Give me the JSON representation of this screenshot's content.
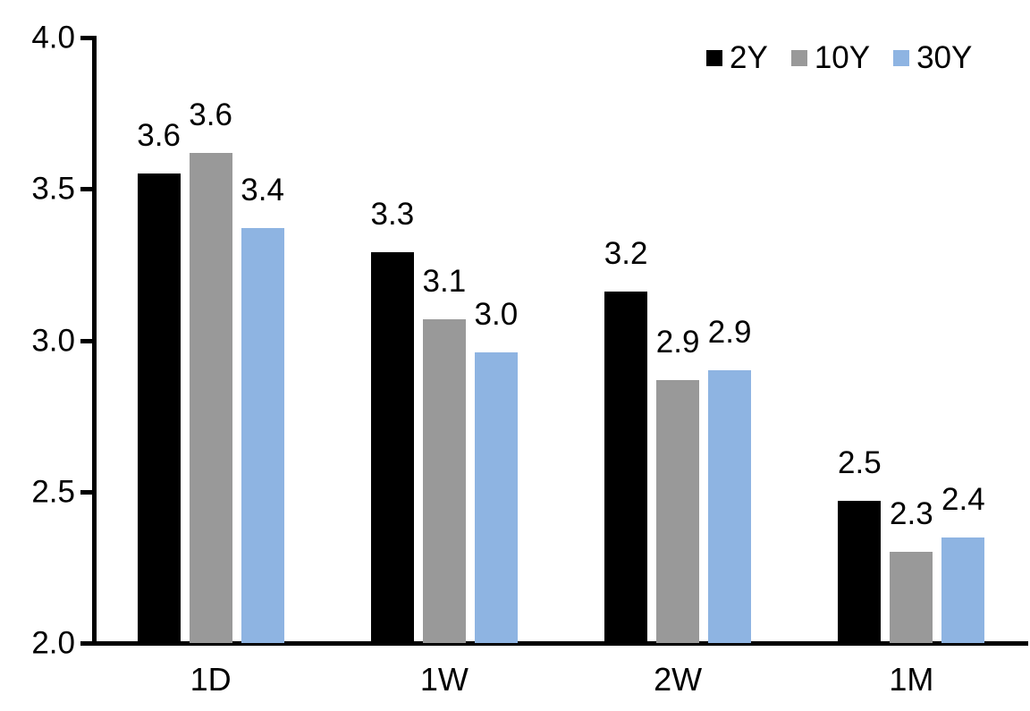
{
  "chart_data": {
    "type": "bar",
    "title": "",
    "xlabel": "",
    "ylabel": "",
    "categories": [
      "1D",
      "1W",
      "2W",
      "1M"
    ],
    "series": [
      {
        "name": "2Y",
        "color": "#000000",
        "values": [
          3.55,
          3.29,
          3.16,
          2.47
        ],
        "labels": [
          "3.6",
          "3.3",
          "3.2",
          "2.5"
        ]
      },
      {
        "name": "10Y",
        "color": "#999999",
        "values": [
          3.62,
          3.07,
          2.87,
          2.3
        ],
        "labels": [
          "3.6",
          "3.1",
          "2.9",
          "2.3"
        ]
      },
      {
        "name": "30Y",
        "color": "#8EB4E2",
        "values": [
          3.37,
          2.96,
          2.9,
          2.35
        ],
        "labels": [
          "3.4",
          "3.0",
          "2.9",
          "2.4"
        ]
      }
    ],
    "ylim": [
      2.0,
      4.0
    ],
    "yticks": [
      {
        "value": 2.0,
        "label": "2.0"
      },
      {
        "value": 2.5,
        "label": "2.5"
      },
      {
        "value": 3.0,
        "label": "3.0"
      },
      {
        "value": 3.5,
        "label": "3.5"
      },
      {
        "value": 4.0,
        "label": "4.0"
      }
    ],
    "grid": false,
    "legend_position": "top-right"
  }
}
